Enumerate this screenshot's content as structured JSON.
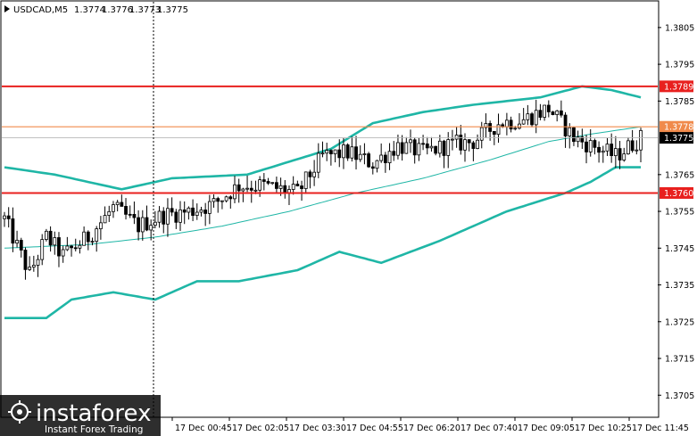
{
  "header": {
    "symbol": "USDCAD,M5",
    "open": "1.3774",
    "high": "1.3776",
    "low": "1.3773",
    "close": "1.3775"
  },
  "logo": {
    "brand": "instaforex",
    "tagline": "Instant Forex Trading"
  },
  "colors": {
    "level_red": "#e8201e",
    "level_orange": "#f08a4b",
    "bollinger": "#1fb6a6",
    "moving_average": "#1fb6a6",
    "candle_bull_body": "#ffffff",
    "candle_bear_body": "#000000",
    "price_tag": "#000000"
  },
  "chart_data": {
    "type": "candlestick",
    "symbol": "USDCAD",
    "timeframe": "M5",
    "ylim": [
      1.3699,
      1.3812
    ],
    "y_ticks": [
      "1.3805",
      "1.3795",
      "1.3785",
      "1.3765",
      "1.3755",
      "1.3745",
      "1.3735",
      "1.3725",
      "1.3715",
      "1.3705"
    ],
    "x_ticks": [
      "17 Dec 00:45",
      "17 Dec 02:05",
      "17 Dec 03:30",
      "17 Dec 04:55",
      "17 Dec 06:20",
      "17 Dec 07:40",
      "17 Dec 09:05",
      "17 Dec 10:25",
      "17 Dec 11:45"
    ],
    "grid": false,
    "levels": [
      {
        "value": 1.3789,
        "label": "1.3789",
        "color": "red"
      },
      {
        "value": 1.3778,
        "label": "1.3778",
        "color": "orange"
      },
      {
        "value": 1.376,
        "label": "1.3760",
        "color": "red"
      }
    ],
    "current_price": {
      "value": 1.3775,
      "label": "1.3775"
    },
    "indicators": {
      "bollinger_upper_anchors": [
        [
          0,
          1.3767
        ],
        [
          12,
          1.3765
        ],
        [
          28,
          1.3761
        ],
        [
          40,
          1.3764
        ],
        [
          58,
          1.3765
        ],
        [
          78,
          1.3772
        ],
        [
          88,
          1.3779
        ],
        [
          100,
          1.3782
        ],
        [
          112,
          1.3784
        ],
        [
          128,
          1.3786
        ],
        [
          138,
          1.3789
        ],
        [
          145,
          1.3788
        ],
        [
          152,
          1.3786
        ]
      ],
      "bollinger_middle_anchors": [
        [
          0,
          1.3745
        ],
        [
          20,
          1.3746
        ],
        [
          36,
          1.3748
        ],
        [
          52,
          1.3751
        ],
        [
          68,
          1.3755
        ],
        [
          84,
          1.376
        ],
        [
          100,
          1.3764
        ],
        [
          116,
          1.3769
        ],
        [
          130,
          1.3774
        ],
        [
          140,
          1.3776
        ],
        [
          152,
          1.3778
        ]
      ],
      "bollinger_lower_anchors": [
        [
          0,
          1.3726
        ],
        [
          10,
          1.3726
        ],
        [
          16,
          1.3731
        ],
        [
          26,
          1.3733
        ],
        [
          36,
          1.3731
        ],
        [
          46,
          1.3736
        ],
        [
          56,
          1.3736
        ],
        [
          70,
          1.3739
        ],
        [
          80,
          1.3744
        ],
        [
          90,
          1.3741
        ],
        [
          104,
          1.3747
        ],
        [
          120,
          1.3755
        ],
        [
          134,
          1.376
        ],
        [
          140,
          1.3763
        ],
        [
          146,
          1.3767
        ],
        [
          152,
          1.3767
        ]
      ]
    },
    "series_anchors": [
      [
        0,
        1.3753
      ],
      [
        6,
        1.3738
      ],
      [
        10,
        1.3748
      ],
      [
        14,
        1.3743
      ],
      [
        20,
        1.3748
      ],
      [
        26,
        1.3756
      ],
      [
        32,
        1.3751
      ],
      [
        38,
        1.3754
      ],
      [
        44,
        1.3755
      ],
      [
        50,
        1.3757
      ],
      [
        56,
        1.3762
      ],
      [
        62,
        1.3762
      ],
      [
        70,
        1.376
      ],
      [
        76,
        1.377
      ],
      [
        82,
        1.3771
      ],
      [
        88,
        1.3768
      ],
      [
        94,
        1.3773
      ],
      [
        100,
        1.3771
      ],
      [
        106,
        1.3773
      ],
      [
        112,
        1.3774
      ],
      [
        118,
        1.3779
      ],
      [
        124,
        1.378
      ],
      [
        130,
        1.3783
      ],
      [
        136,
        1.3775
      ],
      [
        142,
        1.3772
      ],
      [
        146,
        1.377
      ],
      [
        152,
        1.3775
      ]
    ],
    "candle_count": 153
  }
}
